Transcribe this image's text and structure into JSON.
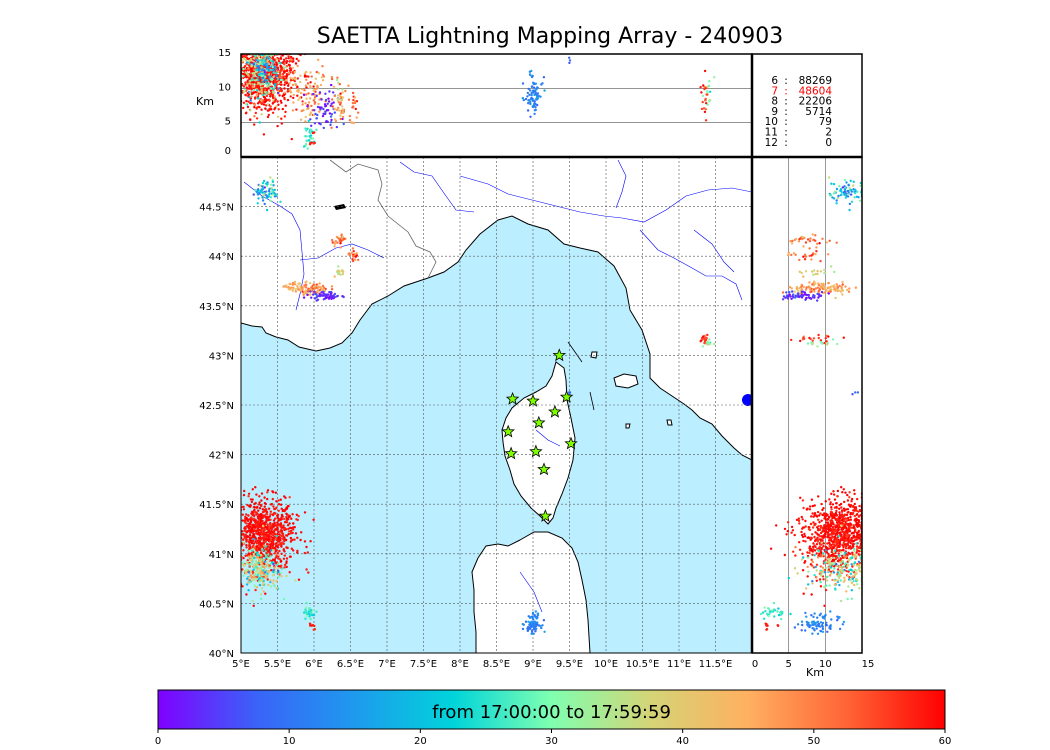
{
  "title": "SAETTA Lightning Mapping Array - 240903",
  "altitude_axis": {
    "label": "Km",
    "ticks": [
      "0",
      "5",
      "10",
      "15"
    ]
  },
  "longitude_ticks": [
    "5°E",
    "5.5°E",
    "6°E",
    "6.5°E",
    "7°E",
    "7.5°E",
    "8°E",
    "8.5°E",
    "9°E",
    "9.5°E",
    "10°E",
    "10.5°E",
    "11°E",
    "11.5°E"
  ],
  "latitude_ticks": [
    "40°N",
    "40.5°N",
    "41°N",
    "41.5°N",
    "42°N",
    "42.5°N",
    "43°N",
    "43.5°N",
    "44°N",
    "44.5°N"
  ],
  "station_counts": [
    {
      "stations": "6",
      "count": "88269",
      "color": "#000000"
    },
    {
      "stations": "7",
      "count": "48604",
      "color": "#ff0000"
    },
    {
      "stations": "8",
      "count": "22206",
      "color": "#000000"
    },
    {
      "stations": "9",
      "count": "5714",
      "color": "#000000"
    },
    {
      "stations": "10",
      "count": "79",
      "color": "#000000"
    },
    {
      "stations": "11",
      "count": "2",
      "color": "#000000"
    },
    {
      "stations": "12",
      "count": "0",
      "color": "#000000"
    }
  ],
  "colorbar": {
    "label": "from 17:00:00 to 17:59:59",
    "ticks": [
      "0",
      "10",
      "20",
      "30",
      "40",
      "50",
      "60"
    ],
    "colors": [
      "#7f00ff",
      "#3a63f8",
      "#1e9aee",
      "#00d4da",
      "#7fffb0",
      "#d4d477",
      "#ffb060",
      "#ff6436",
      "#ff0000"
    ]
  },
  "colors": {
    "sea": "#bbeeff",
    "land": "#ffffff",
    "coast": "#000000",
    "rivers": "#0000ff",
    "borders": "#666666",
    "station_marker": "#7fff00"
  },
  "icons": {
    "station": "star-icon"
  },
  "chart_data": {
    "type": "scatter",
    "x_range": [
      5,
      12
    ],
    "y_range": [
      40,
      45
    ],
    "altitude_range_km": [
      0,
      15
    ],
    "time_range_min": [
      0,
      60
    ],
    "stations": [
      {
        "lon": 9.36,
        "lat": 43.0
      },
      {
        "lon": 8.72,
        "lat": 42.56
      },
      {
        "lon": 9.0,
        "lat": 42.54
      },
      {
        "lon": 9.46,
        "lat": 42.58
      },
      {
        "lon": 9.3,
        "lat": 42.43
      },
      {
        "lon": 9.08,
        "lat": 42.32
      },
      {
        "lon": 8.66,
        "lat": 42.23
      },
      {
        "lon": 9.52,
        "lat": 42.11
      },
      {
        "lon": 8.7,
        "lat": 42.01
      },
      {
        "lon": 9.04,
        "lat": 42.03
      },
      {
        "lon": 9.15,
        "lat": 41.85
      },
      {
        "lon": 9.17,
        "lat": 41.38
      }
    ],
    "clusters": [
      {
        "lon": 5.3,
        "lat": 41.2,
        "sd_lon": 0.22,
        "sd_lat": 0.18,
        "alt": 12,
        "sd_alt": 2.5,
        "t": 59,
        "sd_t": 1.5,
        "n": 900
      },
      {
        "lon": 5.25,
        "lat": 40.85,
        "sd_lon": 0.15,
        "sd_lat": 0.12,
        "alt": 12,
        "sd_alt": 2.5,
        "t": 35,
        "sd_t": 10,
        "n": 250
      },
      {
        "lon": 5.35,
        "lat": 44.65,
        "sd_lon": 0.08,
        "sd_lat": 0.06,
        "alt": 13,
        "sd_alt": 1.2,
        "t": 20,
        "sd_t": 8,
        "n": 80
      },
      {
        "lon": 5.95,
        "lat": 43.67,
        "sd_lon": 0.12,
        "sd_lat": 0.03,
        "alt": 9,
        "sd_alt": 2,
        "t": 48,
        "sd_t": 5,
        "n": 80
      },
      {
        "lon": 6.15,
        "lat": 43.6,
        "sd_lon": 0.1,
        "sd_lat": 0.02,
        "alt": 7,
        "sd_alt": 1.5,
        "t": 3,
        "sd_t": 3,
        "n": 60
      },
      {
        "lon": 6.35,
        "lat": 44.17,
        "sd_lon": 0.05,
        "sd_lat": 0.03,
        "alt": 8,
        "sd_alt": 1.5,
        "t": 50,
        "sd_t": 4,
        "n": 30
      },
      {
        "lon": 6.55,
        "lat": 44.0,
        "sd_lon": 0.05,
        "sd_lat": 0.03,
        "alt": 8,
        "sd_alt": 1.5,
        "t": 50,
        "sd_t": 4,
        "n": 20
      },
      {
        "lon": 6.35,
        "lat": 43.83,
        "sd_lon": 0.04,
        "sd_lat": 0.02,
        "alt": 9,
        "sd_alt": 1.5,
        "t": 38,
        "sd_t": 4,
        "n": 15
      },
      {
        "lon": 5.92,
        "lat": 40.4,
        "sd_lon": 0.05,
        "sd_lat": 0.04,
        "alt": 3,
        "sd_alt": 1,
        "t": 25,
        "sd_t": 3,
        "n": 30
      },
      {
        "lon": 5.98,
        "lat": 40.27,
        "sd_lon": 0.02,
        "sd_lat": 0.02,
        "alt": 3,
        "sd_alt": 1,
        "t": 58,
        "sd_t": 1,
        "n": 8
      },
      {
        "lon": 9.0,
        "lat": 40.3,
        "sd_lon": 0.05,
        "sd_lat": 0.05,
        "alt": 9,
        "sd_alt": 1.5,
        "t": 12,
        "sd_t": 2,
        "n": 80
      },
      {
        "lon": 11.35,
        "lat": 43.17,
        "sd_lon": 0.03,
        "sd_lat": 0.02,
        "alt": 9,
        "sd_alt": 1.5,
        "t": 55,
        "sd_t": 3,
        "n": 20
      },
      {
        "lon": 11.4,
        "lat": 43.13,
        "sd_lon": 0.03,
        "sd_lat": 0.02,
        "alt": 9,
        "sd_alt": 1.5,
        "t": 30,
        "sd_t": 3,
        "n": 12
      },
      {
        "lon": 9.5,
        "lat": 42.62,
        "sd_lon": 0.01,
        "sd_lat": 0.01,
        "alt": 14,
        "sd_alt": 0.4,
        "t": 8,
        "sd_t": 1,
        "n": 3
      },
      {
        "lon": 5.7,
        "lat": 43.68,
        "sd_lon": 0.05,
        "sd_lat": 0.03,
        "alt": 11,
        "sd_alt": 1.5,
        "t": 44,
        "sd_t": 3,
        "n": 25
      }
    ]
  }
}
